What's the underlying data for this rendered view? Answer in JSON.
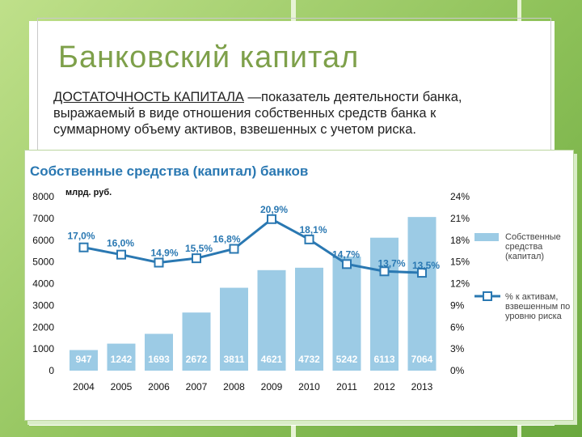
{
  "slide": {
    "title": "Банковский капитал",
    "term": "ДОСТАТОЧНОСТЬ КАПИТАЛА",
    "definition": " —показатель деятельности банка, выражаемый в виде отношения собственных средств банка к суммарному объему активов, взвешенных с учетом риска."
  },
  "chart_data": {
    "type": "bar",
    "title": "Собственные средства (капитал) банков",
    "ylabel": "млрд. руб.",
    "ylim": [
      0,
      8000
    ],
    "y_ticks": [
      "0",
      "1000",
      "2000",
      "3000",
      "4000",
      "5000",
      "6000",
      "7000",
      "8000"
    ],
    "y2lim": [
      0,
      24
    ],
    "y2_ticks": [
      "0%",
      "3%",
      "6%",
      "9%",
      "12%",
      "15%",
      "18%",
      "21%",
      "24%"
    ],
    "categories": [
      "2004",
      "2005",
      "2006",
      "2007",
      "2008",
      "2009",
      "2010",
      "2011",
      "2012",
      "2013"
    ],
    "series": [
      {
        "name": "Собственные средства (капитал)",
        "type": "bar",
        "values": [
          947,
          1242,
          1693,
          2672,
          3811,
          4621,
          4732,
          5242,
          6113,
          7064
        ],
        "labels": [
          "947",
          "1242",
          "1693",
          "2672",
          "3811",
          "4621",
          "4732",
          "5242",
          "6113",
          "7064"
        ],
        "color": "#9ccbe5"
      },
      {
        "name": "% к активам, взвешенным по уровню риска",
        "type": "line",
        "axis": "right",
        "values": [
          17.0,
          16.0,
          14.9,
          15.5,
          16.8,
          20.9,
          18.1,
          14.7,
          13.7,
          13.5
        ],
        "labels": [
          "17,0%",
          "16,0%",
          "14,9%",
          "15,5%",
          "16,8%",
          "20,9%",
          "18,1%",
          "14,7%",
          "13,7%",
          "13,5%"
        ],
        "color": "#2a78b2"
      }
    ],
    "legend": [
      {
        "lines": [
          "Собственные",
          "средства",
          "(капитал)"
        ]
      },
      {
        "lines": [
          "% к активам,",
          "взвешенным по",
          "уровню риска"
        ]
      }
    ],
    "legend_position": "right",
    "grid": false
  }
}
